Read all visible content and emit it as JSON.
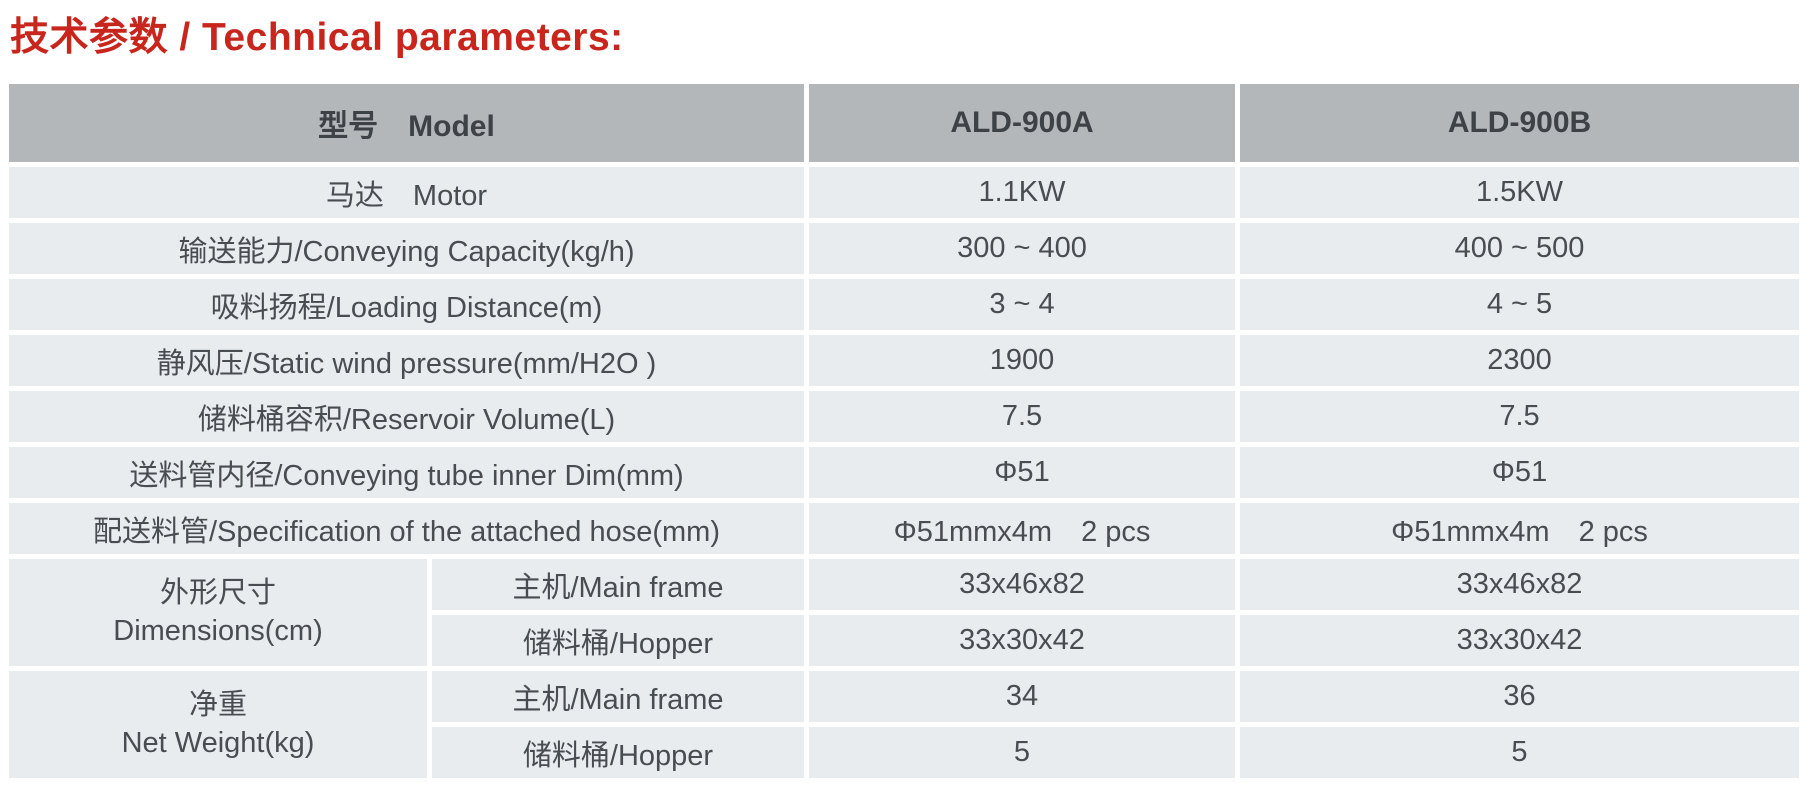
{
  "page_title": "技术参数 / Technical parameters:",
  "colors": {
    "title_red": "#c8251d",
    "header_bg": "#b4b7ba",
    "header_text": "#3d4246",
    "row_bg": "#e8ecef",
    "body_text": "#474d50"
  },
  "table": {
    "header": {
      "model_label": "型号　Model",
      "model_a": "ALD-900A",
      "model_b": "ALD-900B"
    },
    "rows": [
      {
        "label": "马达　Motor",
        "a": "1.1KW",
        "b": "1.5KW"
      },
      {
        "label": "输送能力/Conveying Capacity(kg/h)",
        "a": "300 ~ 400",
        "b": "400 ~ 500"
      },
      {
        "label": "吸料扬程/Loading Distance(m)",
        "a": "3 ~ 4",
        "b": "4 ~ 5"
      },
      {
        "label": "静风压/Static wind pressure(mm/H2O )",
        "a": "1900",
        "b": "2300"
      },
      {
        "label": "储料桶容积/Reservoir Volume(L)",
        "a": "7.5",
        "b": "7.5"
      },
      {
        "label": "送料管内径/Conveying tube inner Dim(mm)",
        "a": "Φ51",
        "b": "Φ51"
      },
      {
        "label": "配送料管/Specification of the attached hose(mm)",
        "a": "Φ51mmx4m　2 pcs",
        "b": "Φ51mmx4m　2 pcs"
      }
    ],
    "groups": [
      {
        "label_cn": "外形尺寸",
        "label_en": "Dimensions(cm)",
        "subrows": [
          {
            "label": "主机/Main frame",
            "a": "33x46x82",
            "b": "33x46x82"
          },
          {
            "label": "储料桶/Hopper",
            "a": "33x30x42",
            "b": "33x30x42"
          }
        ]
      },
      {
        "label_cn": "净重",
        "label_en": "Net Weight(kg)",
        "subrows": [
          {
            "label": "主机/Main frame",
            "a": "34",
            "b": "36"
          },
          {
            "label": "储料桶/Hopper",
            "a": "5",
            "b": "5"
          }
        ]
      }
    ]
  }
}
